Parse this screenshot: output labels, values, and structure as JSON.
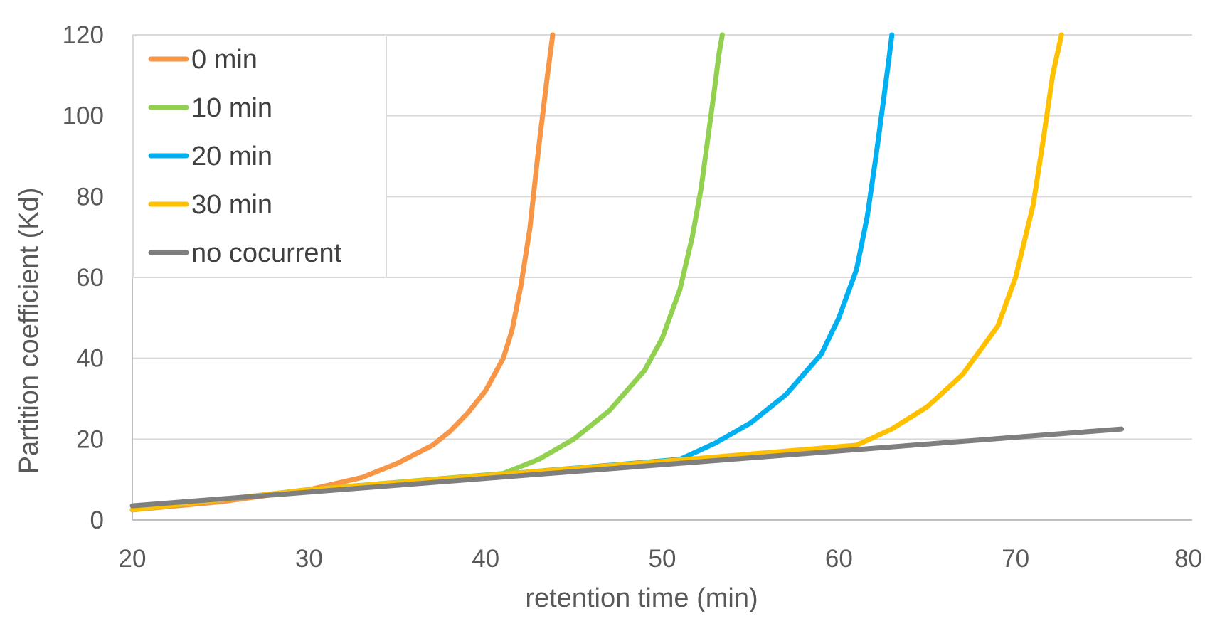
{
  "chart_data": {
    "type": "line",
    "title": "",
    "xlabel": "retention time (min)",
    "ylabel": "Partition coefficient (Kd)",
    "xlim": [
      20,
      80
    ],
    "ylim": [
      0,
      120
    ],
    "xticks": [
      20,
      30,
      40,
      50,
      60,
      70,
      80
    ],
    "yticks": [
      0,
      20,
      40,
      60,
      80,
      100,
      120
    ],
    "grid": "horizontal",
    "legend_position": "top-left",
    "series": [
      {
        "name": "0 min",
        "color": "#F79646",
        "x": [
          20,
          25,
          30,
          33,
          35,
          37,
          38,
          39,
          40,
          41,
          41.5,
          42,
          42.5,
          43,
          43.5,
          43.8
        ],
        "y": [
          2.5,
          4.5,
          7.5,
          10.5,
          14,
          18.5,
          22,
          26.5,
          32,
          40,
          47,
          58,
          72,
          92,
          110,
          120
        ]
      },
      {
        "name": "10 min",
        "color": "#92D050",
        "x": [
          20,
          30,
          41,
          43,
          45,
          47,
          49,
          50,
          51,
          51.7,
          52.2,
          52.6,
          53,
          53.2,
          53.4
        ],
        "y": [
          2.5,
          7.5,
          11.5,
          15,
          20,
          27,
          37,
          45,
          57,
          70,
          82,
          95,
          108,
          115,
          120
        ]
      },
      {
        "name": "20 min",
        "color": "#00B0F0",
        "x": [
          20,
          30,
          40,
          51,
          53,
          55,
          57,
          59,
          60,
          61,
          61.6,
          62.1,
          62.5,
          62.8,
          63
        ],
        "y": [
          2.5,
          7.5,
          11,
          15,
          19,
          24,
          31,
          41,
          50,
          62,
          75,
          90,
          103,
          113,
          120
        ]
      },
      {
        "name": "30 min",
        "color": "#FFC000",
        "x": [
          20,
          30,
          40,
          50,
          61,
          63,
          65,
          67,
          69,
          70,
          71,
          71.6,
          72.1,
          72.6
        ],
        "y": [
          2.5,
          7.5,
          11,
          14.5,
          18.5,
          22.5,
          28,
          36,
          48,
          60,
          78,
          95,
          110,
          120
        ]
      },
      {
        "name": "no cocurrent",
        "color": "#7F7F7F",
        "x": [
          20,
          76
        ],
        "y": [
          3.5,
          22.5
        ]
      }
    ]
  }
}
